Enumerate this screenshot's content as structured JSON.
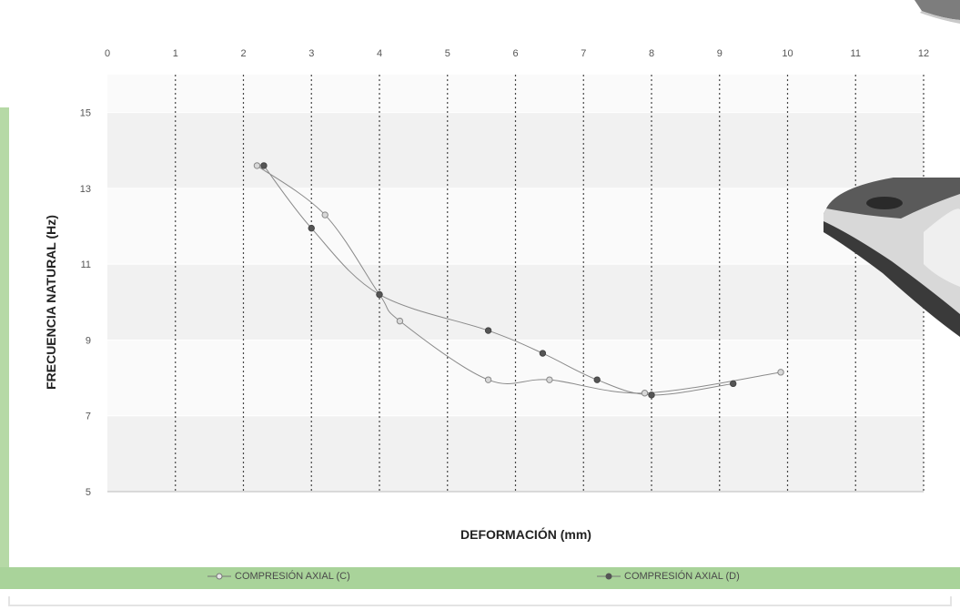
{
  "chart_data": {
    "type": "line",
    "xlabel": "DEFORMACIÓN (mm)",
    "ylabel": "FRECUENCIA NATURAL (Hz)",
    "xlim": [
      0,
      12
    ],
    "ylim": [
      5,
      16
    ],
    "xticks": [
      0,
      1,
      2,
      3,
      4,
      5,
      6,
      7,
      8,
      9,
      10,
      11,
      12
    ],
    "yticks": [
      5,
      7,
      9,
      11,
      13,
      15
    ],
    "x_axis_position": "top",
    "grid": "vertical dashed lines at each x tick; alternating light gray horizontal bands",
    "legend_position": "bottom",
    "series": [
      {
        "name": "COMPRESIÓN AXIAL (C)",
        "marker": "open-circle",
        "color": "#9a9a9a",
        "x": [
          2.2,
          3.2,
          4.0,
          4.3,
          5.6,
          6.5,
          7.9,
          9.9
        ],
        "y": [
          13.6,
          12.3,
          10.2,
          9.5,
          7.95,
          7.95,
          7.6,
          8.15
        ]
      },
      {
        "name": "COMPRESIÓN AXIAL (D)",
        "marker": "filled-circle",
        "color": "#555555",
        "x": [
          2.3,
          3.0,
          4.0,
          5.6,
          6.4,
          7.2,
          8.0,
          9.2
        ],
        "y": [
          13.6,
          11.95,
          10.2,
          9.25,
          8.65,
          7.95,
          7.55,
          7.85
        ]
      }
    ]
  },
  "colors": {
    "frame_green": "#b6d9a6",
    "legend_green": "#a9d39a",
    "line_color": "#8a8a8a",
    "grid_color": "#555555"
  }
}
